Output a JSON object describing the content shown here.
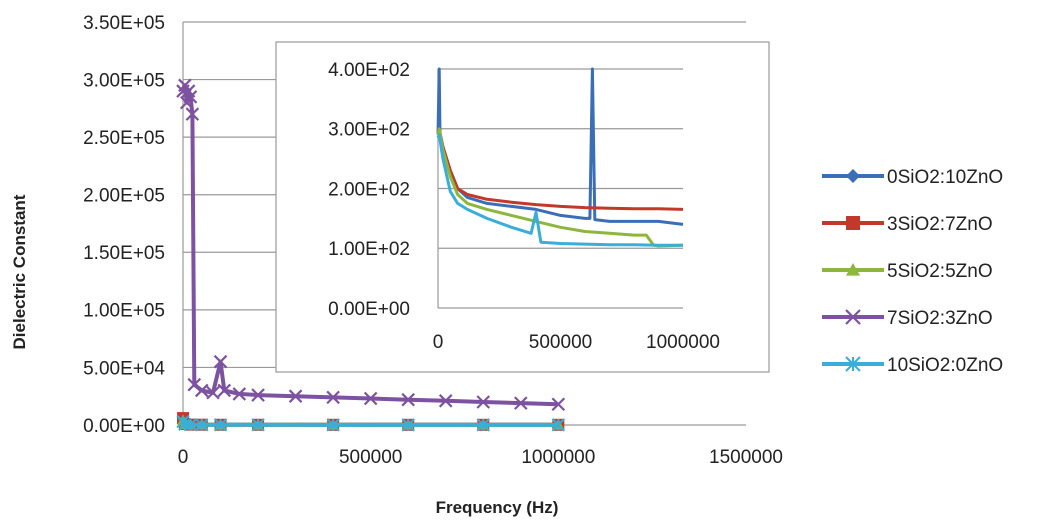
{
  "chart_data": [
    {
      "id": "main",
      "type": "line",
      "xlabel": "Frequency (Hz)",
      "ylabel": "Dielectric Constant",
      "xlim": [
        0,
        1500000
      ],
      "ylim": [
        0,
        350000
      ],
      "x_ticks": [
        "0",
        "500000",
        "1000000",
        "1500000"
      ],
      "y_ticks": [
        "0.00E+00",
        "5.00E+04",
        "1.00E+05",
        "1.50E+05",
        "2.00E+05",
        "2.50E+05",
        "3.00E+05",
        "3.50E+05"
      ],
      "x_tick_values": [
        0,
        500000,
        1000000,
        1500000
      ],
      "y_tick_values": [
        0,
        50000,
        100000,
        150000,
        200000,
        250000,
        300000,
        350000
      ],
      "grid": "horizontal",
      "series": [
        {
          "name": "0SiO2:10ZnO",
          "color": "#3a6fb7",
          "marker": "diamond",
          "x": [
            100,
            5000,
            20000,
            50000,
            100000,
            200000,
            400000,
            600000,
            800000,
            1000000
          ],
          "y": [
            5000,
            800,
            300,
            220,
            190,
            170,
            160,
            150,
            145,
            140
          ]
        },
        {
          "name": "3SiO2:7ZnO",
          "color": "#c0392b",
          "marker": "square",
          "x": [
            100,
            5000,
            20000,
            50000,
            100000,
            200000,
            400000,
            600000,
            800000,
            1000000
          ],
          "y": [
            6000,
            900,
            300,
            240,
            200,
            185,
            175,
            170,
            168,
            165
          ]
        },
        {
          "name": "5SiO2:5ZnO",
          "color": "#8db63c",
          "marker": "triangle",
          "x": [
            100,
            5000,
            20000,
            50000,
            100000,
            200000,
            400000,
            600000,
            800000,
            1000000
          ],
          "y": [
            4000,
            700,
            290,
            210,
            180,
            160,
            140,
            125,
            115,
            105
          ]
        },
        {
          "name": "7SiO2:3ZnO",
          "color": "#7d52a0",
          "marker": "x",
          "x": [
            0,
            5000,
            10000,
            15000,
            20000,
            25000,
            30000,
            50000,
            80000,
            100000,
            110000,
            150000,
            200000,
            300000,
            400000,
            500000,
            600000,
            700000,
            800000,
            900000,
            1000000
          ],
          "y": [
            290000,
            295000,
            280000,
            290000,
            285000,
            270000,
            35000,
            30000,
            28000,
            55000,
            30000,
            27000,
            26000,
            25000,
            24000,
            23000,
            22000,
            21000,
            20000,
            19000,
            18000
          ]
        },
        {
          "name": "10SiO2:0ZnO",
          "color": "#3aaed8",
          "marker": "star",
          "x": [
            100,
            5000,
            20000,
            50000,
            100000,
            200000,
            400000,
            600000,
            800000,
            1000000
          ],
          "y": [
            3000,
            600,
            280,
            190,
            160,
            140,
            120,
            110,
            105,
            105
          ]
        }
      ]
    },
    {
      "id": "inset",
      "type": "line",
      "xlim": [
        0,
        1000000
      ],
      "ylim": [
        0,
        400
      ],
      "x_ticks": [
        "0",
        "500000",
        "1000000"
      ],
      "y_ticks": [
        "0.00E+00",
        "1.00E+02",
        "2.00E+02",
        "3.00E+02",
        "4.00E+02"
      ],
      "x_tick_values": [
        0,
        500000,
        1000000
      ],
      "y_tick_values": [
        0,
        100,
        200,
        300,
        400
      ],
      "grid": "horizontal",
      "series": [
        {
          "name": "0SiO2:10ZnO",
          "color": "#3a6fb7",
          "x": [
            0,
            5000,
            8000,
            12000,
            20000,
            50000,
            80000,
            120000,
            200000,
            300000,
            400000,
            500000,
            600000,
            620000,
            630000,
            640000,
            700000,
            800000,
            900000,
            1000000
          ],
          "y": [
            290,
            400,
            290,
            285,
            270,
            230,
            200,
            185,
            175,
            170,
            165,
            155,
            150,
            150,
            400,
            148,
            145,
            145,
            145,
            140
          ]
        },
        {
          "name": "3SiO2:7ZnO",
          "color": "#c0392b",
          "x": [
            0,
            5000,
            20000,
            50000,
            80000,
            120000,
            200000,
            300000,
            400000,
            500000,
            600000,
            700000,
            800000,
            900000,
            1000000
          ],
          "y": [
            295,
            300,
            270,
            230,
            200,
            190,
            182,
            177,
            173,
            170,
            168,
            167,
            166,
            166,
            165
          ]
        },
        {
          "name": "5SiO2:5ZnO",
          "color": "#8db63c",
          "x": [
            0,
            5000,
            20000,
            50000,
            80000,
            120000,
            200000,
            300000,
            400000,
            500000,
            600000,
            700000,
            800000,
            850000,
            880000,
            900000,
            1000000
          ],
          "y": [
            290,
            300,
            265,
            220,
            190,
            175,
            165,
            155,
            145,
            135,
            128,
            125,
            122,
            122,
            105,
            104,
            105
          ]
        },
        {
          "name": "7SiO2:3ZnO",
          "color": "#7d52a0",
          "x": [],
          "y": []
        },
        {
          "name": "10SiO2:0ZnO",
          "color": "#3aaed8",
          "x": [
            0,
            5000,
            20000,
            50000,
            80000,
            120000,
            200000,
            300000,
            380000,
            400000,
            420000,
            500000,
            600000,
            700000,
            800000,
            900000,
            1000000
          ],
          "y": [
            285,
            290,
            250,
            195,
            175,
            165,
            150,
            135,
            125,
            160,
            110,
            108,
            107,
            106,
            106,
            105,
            105
          ]
        }
      ]
    }
  ]
}
